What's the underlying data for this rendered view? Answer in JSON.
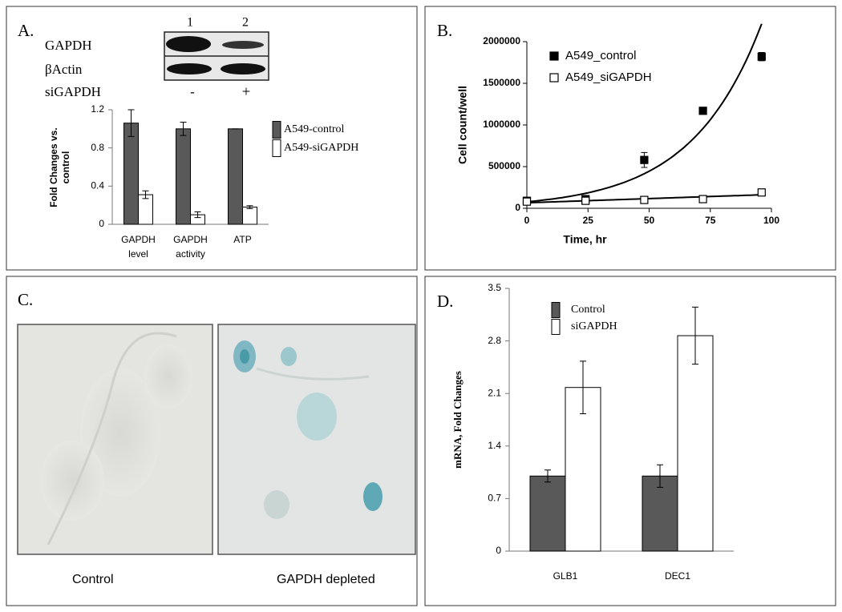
{
  "chart_data": [
    {
      "type": "bar",
      "panel_label": "A.",
      "blot": {
        "lanes": [
          "1",
          "2"
        ],
        "rows": [
          "GAPDH",
          "βActin"
        ],
        "treatment": "siGAPDH",
        "treatment_marks": [
          "-",
          "+"
        ]
      },
      "ylabel": "Fold Changes vs. control",
      "categories": [
        "GAPDH level",
        "GAPDH activity",
        "ATP"
      ],
      "series": [
        {
          "name": "A549-control",
          "color": "#595959",
          "values": [
            1.06,
            1.0,
            1.0
          ],
          "errors": [
            0.14,
            0.07,
            0
          ]
        },
        {
          "name": "A549-siGAPDH",
          "color": "#ffffff",
          "values": [
            0.31,
            0.1,
            0.18
          ],
          "errors": [
            0.04,
            0.03,
            0.015
          ]
        }
      ],
      "ylim": [
        0,
        1.2
      ],
      "yticks": [
        0,
        0.4,
        0.8,
        1.2
      ]
    },
    {
      "type": "scatter",
      "panel_label": "B.",
      "xlabel": "Time, hr",
      "ylabel": "Cell count/well",
      "x": [
        0,
        24,
        48,
        72,
        96
      ],
      "series": [
        {
          "name": "A549_control",
          "color": "#000000",
          "marker": "filled",
          "trendline": "exponential",
          "values": [
            90000,
            110000,
            580000,
            1170000,
            1820000
          ],
          "errors": [
            15000,
            20000,
            90000,
            20000,
            50000
          ]
        },
        {
          "name": "A549_siGAPDH",
          "color": "#000000",
          "marker": "open",
          "trendline": "linear",
          "values": [
            80000,
            90000,
            100000,
            110000,
            190000
          ],
          "errors": [
            10000,
            10000,
            10000,
            10000,
            15000
          ]
        }
      ],
      "xlim": [
        0,
        100
      ],
      "xticks": [
        0,
        25,
        50,
        75,
        100
      ],
      "ylim": [
        0,
        2000000
      ],
      "yticks": [
        0,
        500000,
        1000000,
        1500000,
        2000000
      ]
    },
    {
      "type": "bar",
      "panel_label": "D.",
      "ylabel": "mRNA, Fold Changes",
      "categories": [
        "GLB1",
        "DEC1"
      ],
      "series": [
        {
          "name": "Control",
          "color": "#595959",
          "values": [
            1.0,
            1.0
          ],
          "errors": [
            0.08,
            0.15
          ]
        },
        {
          "name": "siGAPDH",
          "color": "#ffffff",
          "values": [
            2.18,
            2.87
          ],
          "errors": [
            0.35,
            0.38
          ]
        }
      ],
      "ylim": [
        0,
        3.5
      ],
      "yticks": [
        0,
        0.7,
        1.4,
        2.1,
        2.8,
        3.5
      ]
    }
  ],
  "image_panel": {
    "panel_label": "C.",
    "captions": [
      "Control",
      "GAPDH depleted"
    ]
  }
}
